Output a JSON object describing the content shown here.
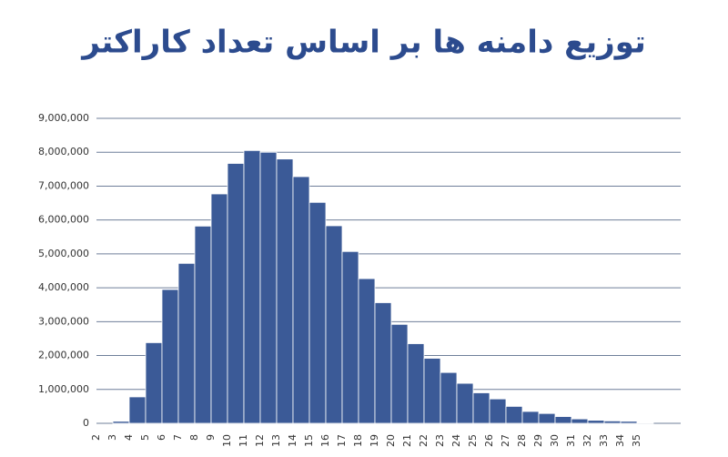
{
  "chart_data": {
    "type": "bar",
    "title": "توزیع دامنه ها بر اساس تعداد کاراکتر",
    "categories": [
      "2",
      "3",
      "4",
      "5",
      "6",
      "7",
      "8",
      "9",
      "10",
      "11",
      "12",
      "13",
      "14",
      "15",
      "16",
      "17",
      "18",
      "19",
      "20",
      "21",
      "22",
      "23",
      "24",
      "25",
      "26",
      "27",
      "28",
      "29",
      "30",
      "31",
      "32",
      "33",
      "34",
      "35"
    ],
    "values": [
      0,
      60000,
      780000,
      2380000,
      3950000,
      4720000,
      5820000,
      6770000,
      7670000,
      8050000,
      8000000,
      7800000,
      7280000,
      6520000,
      5830000,
      5070000,
      4270000,
      3560000,
      2920000,
      2350000,
      1920000,
      1500000,
      1180000,
      900000,
      720000,
      500000,
      350000,
      290000,
      200000,
      130000,
      90000,
      70000,
      60000,
      10000
    ],
    "color": "#3b5a97",
    "ylim": [
      0,
      9000000
    ],
    "yticks": [
      0,
      {
        "value": 1000000,
        "label": "1,000,000"
      },
      {
        "value": 2000000,
        "label": "2,000,000"
      },
      {
        "value": 3000000,
        "label": "3,000,000"
      },
      {
        "value": 4000000,
        "label": "4,000,000"
      },
      {
        "value": 5000000,
        "label": "5,000,000"
      },
      {
        "value": 6000000,
        "label": "6,000,000"
      },
      {
        "value": 7000000,
        "label": "7,000,000"
      },
      {
        "value": 8000000,
        "label": "8,000,000"
      },
      {
        "value": 9000000,
        "label": "9,000,000"
      }
    ],
    "grid": true
  }
}
